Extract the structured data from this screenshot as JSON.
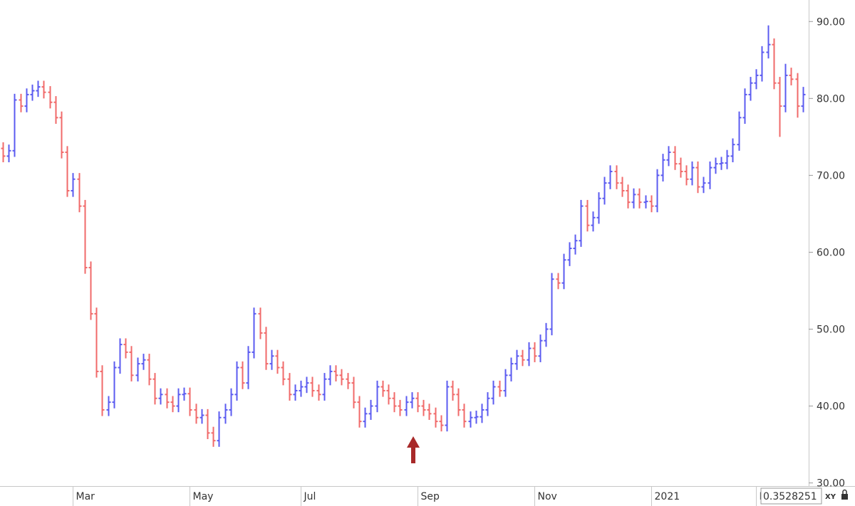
{
  "chart_data": {
    "type": "ohlc",
    "up_color": "#5b5bf0",
    "down_color": "#f06a6a",
    "ylim": [
      29.5,
      92.8
    ],
    "yticks": [
      {
        "value": 30,
        "label": "30.00"
      },
      {
        "value": 40,
        "label": "40.00"
      },
      {
        "value": 50,
        "label": "50.00"
      },
      {
        "value": 60,
        "label": "60.00"
      },
      {
        "value": 70,
        "label": "70.00"
      },
      {
        "value": 80,
        "label": "80.00"
      },
      {
        "value": 90,
        "label": "90.00"
      }
    ],
    "xlim": [
      -0.5,
      138
    ],
    "xticks": [
      {
        "value": 12,
        "label": "Mar"
      },
      {
        "value": 32,
        "label": "May"
      },
      {
        "value": 51,
        "label": "Jul"
      },
      {
        "value": 71,
        "label": "Sep"
      },
      {
        "value": 91,
        "label": "Nov"
      },
      {
        "value": 111,
        "label": "2021"
      },
      {
        "value": 129,
        "label": "Mar"
      }
    ],
    "open": [
      73.5,
      72.5,
      73.2,
      79.8,
      79.0,
      80.5,
      81.0,
      81.5,
      80.8,
      79.5,
      77.5,
      73.0,
      68.0,
      69.5,
      66.0,
      58.0,
      52.0,
      44.5,
      39.5,
      40.5,
      45.0,
      48.0,
      47.0,
      44.0,
      45.5,
      46.0,
      43.5,
      41.0,
      41.5,
      40.5,
      40.0,
      41.5,
      41.6,
      39.5,
      38.5,
      38.8,
      36.5,
      35.5,
      38.5,
      39.5,
      41.5,
      45.0,
      43.0,
      47.0,
      52.0,
      49.5,
      45.5,
      46.5,
      45.0,
      43.5,
      41.5,
      42.0,
      42.5,
      43.0,
      42.0,
      41.5,
      43.5,
      44.5,
      44.0,
      43.5,
      43.0,
      40.5,
      38.0,
      39.0,
      40.0,
      42.5,
      42.0,
      41.0,
      40.0,
      39.5,
      40.5,
      41.0,
      40.0,
      39.5,
      39.0,
      38.0,
      37.5,
      42.5,
      41.5,
      39.5,
      38.0,
      38.5,
      38.6,
      39.5,
      41.0,
      42.5,
      42.0,
      44.0,
      45.5,
      46.5,
      46.0,
      47.5,
      46.5,
      48.5,
      50.0,
      56.5,
      56.0,
      59.0,
      60.5,
      61.5,
      66.0,
      63.5,
      64.5,
      67.0,
      69.0,
      70.5,
      69.0,
      68.0,
      66.5,
      67.5,
      66.5,
      66.6,
      66.0,
      70.0,
      72.0,
      73.0,
      71.5,
      70.5,
      69.5,
      71.0,
      68.5,
      69.0,
      71.0,
      71.5,
      71.6,
      72.5,
      74.0,
      77.5,
      80.5,
      82.0,
      83.0,
      86.0,
      87.0,
      82.0,
      79.0,
      83.0,
      82.5,
      79.0
    ],
    "high": [
      74.3,
      74.0,
      80.6,
      80.6,
      81.3,
      81.8,
      82.3,
      82.3,
      81.6,
      80.3,
      78.3,
      73.8,
      70.3,
      70.3,
      66.8,
      58.8,
      52.8,
      45.3,
      41.3,
      45.8,
      48.8,
      48.8,
      47.8,
      46.3,
      46.8,
      46.8,
      44.3,
      42.3,
      42.3,
      41.3,
      42.3,
      42.4,
      42.4,
      40.3,
      39.6,
      39.6,
      37.3,
      39.3,
      40.3,
      42.3,
      45.8,
      45.8,
      47.8,
      52.8,
      52.8,
      50.3,
      47.3,
      47.3,
      45.8,
      44.3,
      42.8,
      43.3,
      43.8,
      43.8,
      42.8,
      44.3,
      45.3,
      45.3,
      44.8,
      44.3,
      43.8,
      41.3,
      39.8,
      40.8,
      43.3,
      43.3,
      42.8,
      41.8,
      40.8,
      41.3,
      41.8,
      41.8,
      40.8,
      40.3,
      39.8,
      38.8,
      43.3,
      43.3,
      42.3,
      40.3,
      39.3,
      39.4,
      40.3,
      41.8,
      43.3,
      43.3,
      44.8,
      46.3,
      47.3,
      47.3,
      48.3,
      48.3,
      49.3,
      50.8,
      57.3,
      57.3,
      59.8,
      61.3,
      62.3,
      66.8,
      66.8,
      65.3,
      67.8,
      69.8,
      71.3,
      71.3,
      69.8,
      68.8,
      68.3,
      68.3,
      67.4,
      67.4,
      70.8,
      72.8,
      73.8,
      73.8,
      72.3,
      71.3,
      71.8,
      71.8,
      69.8,
      71.8,
      72.3,
      72.4,
      73.3,
      74.8,
      78.3,
      81.3,
      82.8,
      83.8,
      86.8,
      89.5,
      87.8,
      82.8,
      84.5,
      84.0,
      83.3,
      81.5
    ],
    "low": [
      71.7,
      71.7,
      72.4,
      78.2,
      78.2,
      79.7,
      80.2,
      80.0,
      78.7,
      76.7,
      72.2,
      67.2,
      67.2,
      65.2,
      57.2,
      51.2,
      43.7,
      38.7,
      38.7,
      39.7,
      44.2,
      46.2,
      43.2,
      43.2,
      44.7,
      42.7,
      40.2,
      40.2,
      39.7,
      39.2,
      39.2,
      40.7,
      38.7,
      37.7,
      37.7,
      35.7,
      34.7,
      34.7,
      37.7,
      38.7,
      40.7,
      42.2,
      42.2,
      46.2,
      48.7,
      44.7,
      44.7,
      44.2,
      42.7,
      40.7,
      40.7,
      41.2,
      41.7,
      41.2,
      40.7,
      40.7,
      42.7,
      43.2,
      42.7,
      42.2,
      39.7,
      37.2,
      37.2,
      38.2,
      39.2,
      41.2,
      40.2,
      39.2,
      38.7,
      38.7,
      39.7,
      39.2,
      38.7,
      38.2,
      37.2,
      36.7,
      36.7,
      40.7,
      38.7,
      37.2,
      37.2,
      37.7,
      37.8,
      38.7,
      40.2,
      41.2,
      41.2,
      43.2,
      44.7,
      45.2,
      45.2,
      45.7,
      45.7,
      47.7,
      49.2,
      55.2,
      55.2,
      58.2,
      59.7,
      60.7,
      62.7,
      62.7,
      63.7,
      66.2,
      68.2,
      68.2,
      67.2,
      65.7,
      65.7,
      65.7,
      65.7,
      65.2,
      65.2,
      69.2,
      71.2,
      70.7,
      69.7,
      68.7,
      68.7,
      67.7,
      67.7,
      68.2,
      70.2,
      70.7,
      70.8,
      71.7,
      73.2,
      76.7,
      79.7,
      81.2,
      82.2,
      85.2,
      81.2,
      75.0,
      78.2,
      81.7,
      77.5,
      78.2
    ],
    "close": [
      72.5,
      73.2,
      79.8,
      79.0,
      80.5,
      81.0,
      81.5,
      80.8,
      79.5,
      77.5,
      73.0,
      68.0,
      69.5,
      66.0,
      58.0,
      52.0,
      44.5,
      39.5,
      40.5,
      45.0,
      48.0,
      47.0,
      44.0,
      45.5,
      46.0,
      43.5,
      41.0,
      41.5,
      40.5,
      40.0,
      41.5,
      41.6,
      39.5,
      38.5,
      38.8,
      36.5,
      35.5,
      38.5,
      39.5,
      41.5,
      45.0,
      43.0,
      47.0,
      52.0,
      49.5,
      45.5,
      46.5,
      45.0,
      43.5,
      41.5,
      42.0,
      42.5,
      43.0,
      42.0,
      41.5,
      43.5,
      44.5,
      44.0,
      43.5,
      43.0,
      40.5,
      38.0,
      39.0,
      40.0,
      42.5,
      42.0,
      41.0,
      40.0,
      39.5,
      40.5,
      41.0,
      40.0,
      39.5,
      39.0,
      38.0,
      37.5,
      42.5,
      41.5,
      39.5,
      38.0,
      38.5,
      38.6,
      39.5,
      41.0,
      42.5,
      42.0,
      44.0,
      45.5,
      46.5,
      46.0,
      47.5,
      46.5,
      48.5,
      50.0,
      56.5,
      56.0,
      59.0,
      60.5,
      61.5,
      66.0,
      63.5,
      64.5,
      67.0,
      69.0,
      70.5,
      69.0,
      68.0,
      66.5,
      67.5,
      66.5,
      66.6,
      66.0,
      70.0,
      72.0,
      73.0,
      71.5,
      70.5,
      69.5,
      71.0,
      68.5,
      69.0,
      71.0,
      71.5,
      71.6,
      72.5,
      74.0,
      77.5,
      80.5,
      82.0,
      83.0,
      86.0,
      87.0,
      82.0,
      79.0,
      83.0,
      82.5,
      79.0,
      80.5
    ],
    "cursor_value": "0.3528251",
    "xy_label": "XY"
  }
}
